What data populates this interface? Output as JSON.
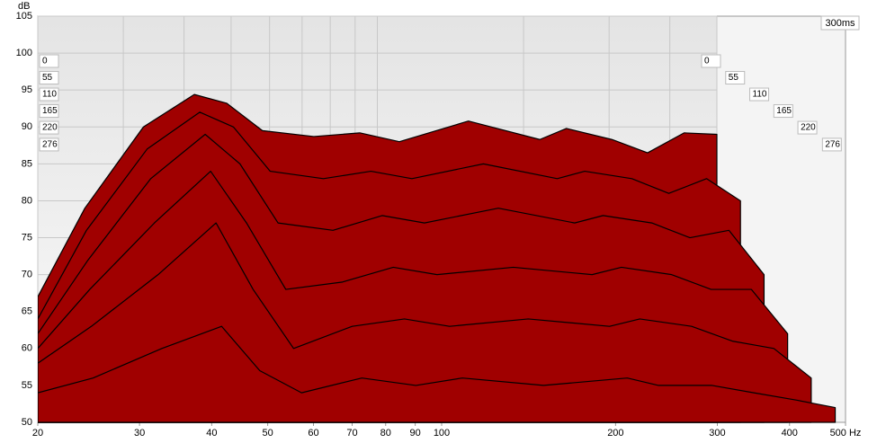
{
  "chart_data": {
    "type": "waterfall",
    "ylabel": "dB",
    "log_x": true,
    "grid": true,
    "color": "#a00000",
    "xlim": [
      20,
      500
    ],
    "ylim": [
      50,
      105
    ],
    "xticks": [
      20,
      30,
      40,
      50,
      60,
      70,
      80,
      90,
      100,
      200,
      300,
      400,
      {
        "value": 500,
        "label": "500 Hz"
      }
    ],
    "yticks": [
      50,
      55,
      60,
      65,
      70,
      75,
      80,
      85,
      90,
      95,
      100,
      105
    ],
    "zmax": {
      "value": 300,
      "label": "300ms"
    },
    "frequencies": [
      20,
      25,
      33,
      42,
      49,
      58,
      74,
      92,
      111,
      154,
      216,
      245,
      304,
      360,
      428,
      500
    ],
    "slices": [
      {
        "time": 0,
        "values": [
          67,
          79,
          90,
          94.4,
          93.2,
          89.5,
          88.7,
          89.2,
          88,
          90.8,
          88.3,
          89.8,
          88.3,
          86.5,
          89.2,
          89
        ]
      },
      {
        "time": 55,
        "values": [
          64,
          76,
          87,
          92,
          90,
          84,
          83,
          84,
          83,
          85,
          83,
          84,
          83,
          81,
          83,
          80
        ]
      },
      {
        "time": 110,
        "values": [
          62,
          72,
          83,
          89,
          85,
          77,
          76,
          78,
          77,
          79,
          77,
          78,
          77,
          75,
          76,
          70
        ]
      },
      {
        "time": 165,
        "values": [
          60,
          68,
          77,
          84,
          77,
          68,
          69,
          71,
          70,
          71,
          70,
          71,
          70,
          68,
          68,
          62
        ]
      },
      {
        "time": 220,
        "values": [
          58,
          63,
          70,
          77,
          68,
          60,
          63,
          64,
          63,
          64,
          63,
          64,
          63,
          61,
          60,
          56
        ]
      },
      {
        "time": 276,
        "values": [
          54,
          56,
          60,
          63,
          57,
          54,
          56,
          55,
          56,
          55,
          56,
          55,
          55,
          54,
          53,
          52
        ]
      }
    ]
  }
}
